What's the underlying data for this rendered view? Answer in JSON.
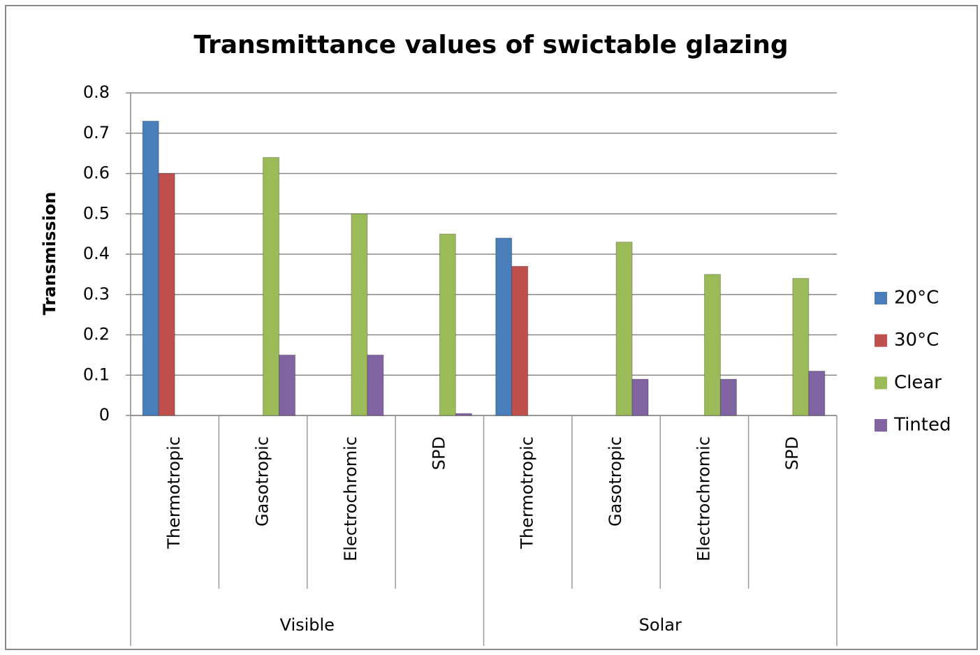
{
  "chart_data": {
    "type": "bar",
    "title": "Transmittance values of swictable glazing",
    "y_label": "Transmission",
    "categories": [
      "Thermotropic",
      "Gasotropic",
      "Electrochromic",
      "SPD",
      "Thermotropic",
      "Gasotropic",
      "Electrochromic",
      "SPD"
    ],
    "groups": [
      "Visible",
      "Solar"
    ],
    "series": [
      {
        "name": "20°C",
        "color": "#4a7ebb",
        "values": [
          0.73,
          null,
          null,
          null,
          0.44,
          null,
          null,
          null
        ]
      },
      {
        "name": "30°C",
        "color": "#c0504d",
        "values": [
          0.6,
          null,
          null,
          null,
          0.37,
          null,
          null,
          null
        ]
      },
      {
        "name": "Clear",
        "color": "#9bbb59",
        "values": [
          null,
          0.64,
          0.5,
          0.45,
          null,
          0.43,
          0.35,
          0.34
        ]
      },
      {
        "name": "Tinted",
        "color": "#8064a2",
        "values": [
          null,
          0.15,
          0.15,
          0.005,
          null,
          0.09,
          0.09,
          0.11
        ]
      }
    ],
    "ylim": [
      0,
      0.8
    ],
    "yticks": [
      0,
      0.1,
      0.2,
      0.3,
      0.4,
      0.5,
      0.6,
      0.7,
      0.8
    ],
    "grid": true,
    "legend": "right"
  }
}
